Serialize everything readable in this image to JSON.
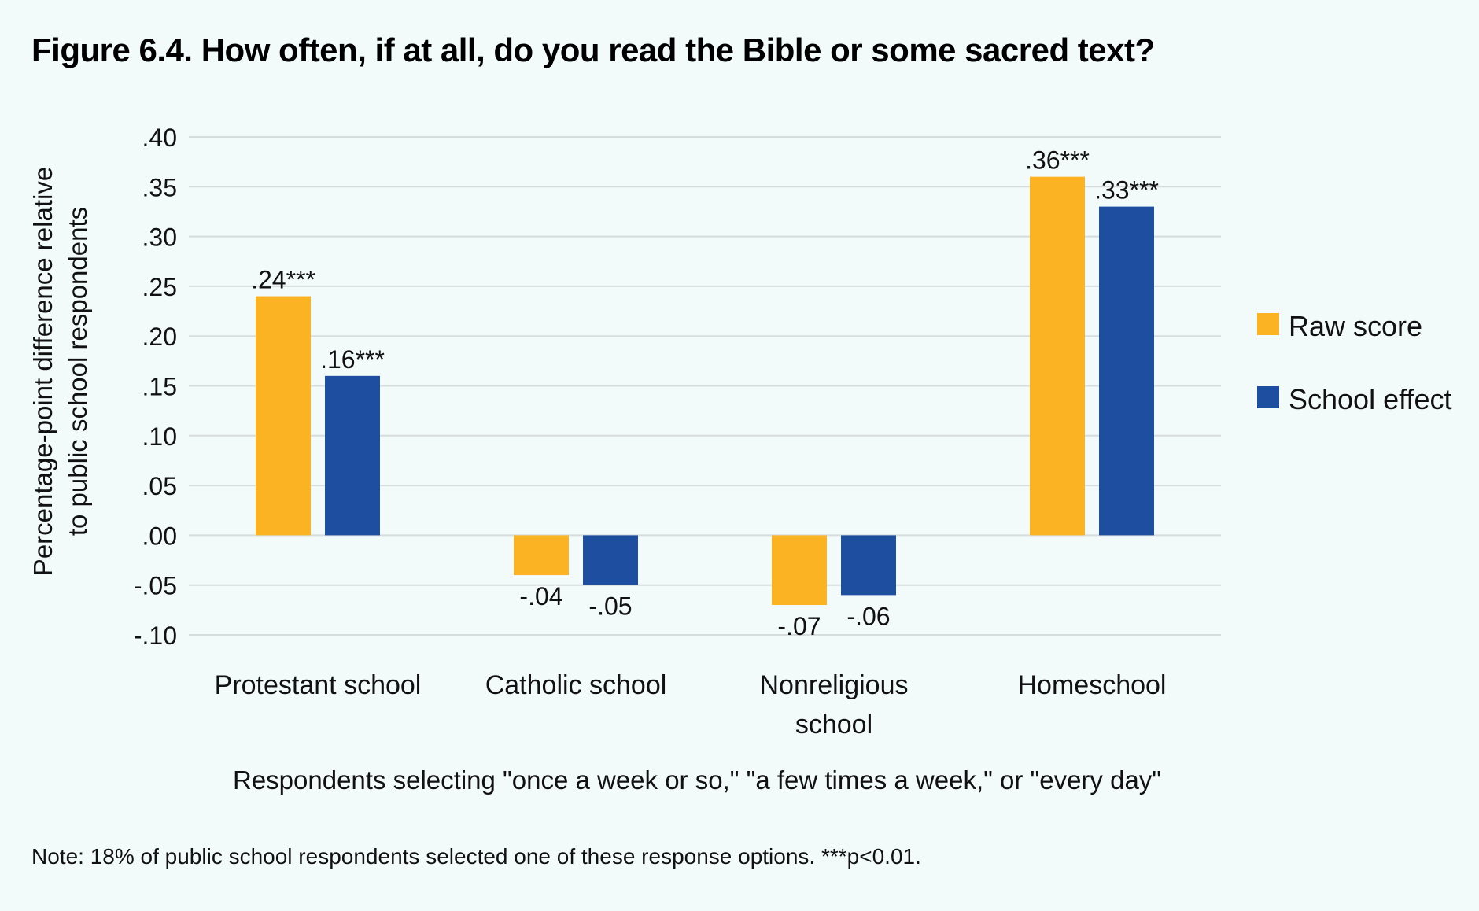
{
  "title": "Figure 6.4. How often, if at all, do you read the Bible or some sacred text?",
  "note": "Note: 18% of public school respondents selected one of these response options. ***p<0.01.",
  "colors": {
    "raw": "#fbb324",
    "effect": "#1d4ea0",
    "grid": "#d7dcdc",
    "background": "#f2fafa"
  },
  "chart_data": {
    "type": "bar",
    "title": "Figure 6.4. How often, if at all, do you read the Bible or some sacred text?",
    "categories": [
      "Protestant school",
      "Catholic school",
      "Nonreligious school",
      "Homeschool"
    ],
    "category_lines": [
      [
        "Protestant school"
      ],
      [
        "Catholic school"
      ],
      [
        "Nonreligious",
        "school"
      ],
      [
        "Homeschool"
      ]
    ],
    "series": [
      {
        "name": "Raw score",
        "values": [
          0.24,
          -0.04,
          -0.07,
          0.36
        ],
        "labels": [
          ".24***",
          "-.04",
          "-.07",
          ".36***"
        ]
      },
      {
        "name": "School effect",
        "values": [
          0.16,
          -0.05,
          -0.06,
          0.33
        ],
        "labels": [
          ".16***",
          "-.05",
          "-.06",
          ".33***"
        ]
      }
    ],
    "ylabel_lines": [
      "Percentage-point difference relative",
      "to public school respondents"
    ],
    "xlabel": "Respondents selecting \"once a week or so,\" \"a few times a week,\" or \"every day\"",
    "ylim": [
      -0.1,
      0.4
    ],
    "yticks": [
      0.4,
      0.35,
      0.3,
      0.25,
      0.2,
      0.15,
      0.1,
      0.05,
      0.0,
      -0.05,
      -0.1
    ],
    "ytick_labels": [
      ".40",
      ".35",
      ".30",
      ".25",
      ".20",
      ".15",
      ".10",
      ".05",
      ".00",
      "-.05",
      "-.10"
    ],
    "grid": true,
    "legend_position": "right"
  }
}
